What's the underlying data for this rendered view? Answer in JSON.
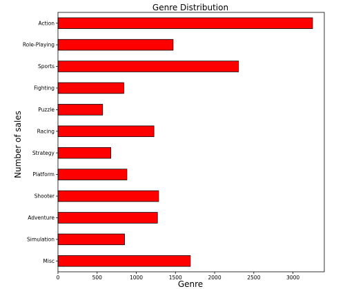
{
  "chart_data": {
    "type": "bar",
    "orientation": "horizontal",
    "title": "Genre Distribution",
    "xlabel": "Genre",
    "ylabel": "Number of sales",
    "categories": [
      "Action",
      "Role-Playing",
      "Sports",
      "Fighting",
      "Puzzle",
      "Racing",
      "Strategy",
      "Platform",
      "Shooter",
      "Adventure",
      "Simulation",
      "Misc"
    ],
    "values": [
      3250,
      1470,
      2305,
      840,
      570,
      1225,
      675,
      880,
      1285,
      1270,
      850,
      1690
    ],
    "xlim": [
      0,
      3400
    ],
    "xticks": [
      0,
      500,
      1000,
      1500,
      2000,
      2500,
      3000
    ],
    "bar_color": "#ff0000",
    "grid": false
  }
}
